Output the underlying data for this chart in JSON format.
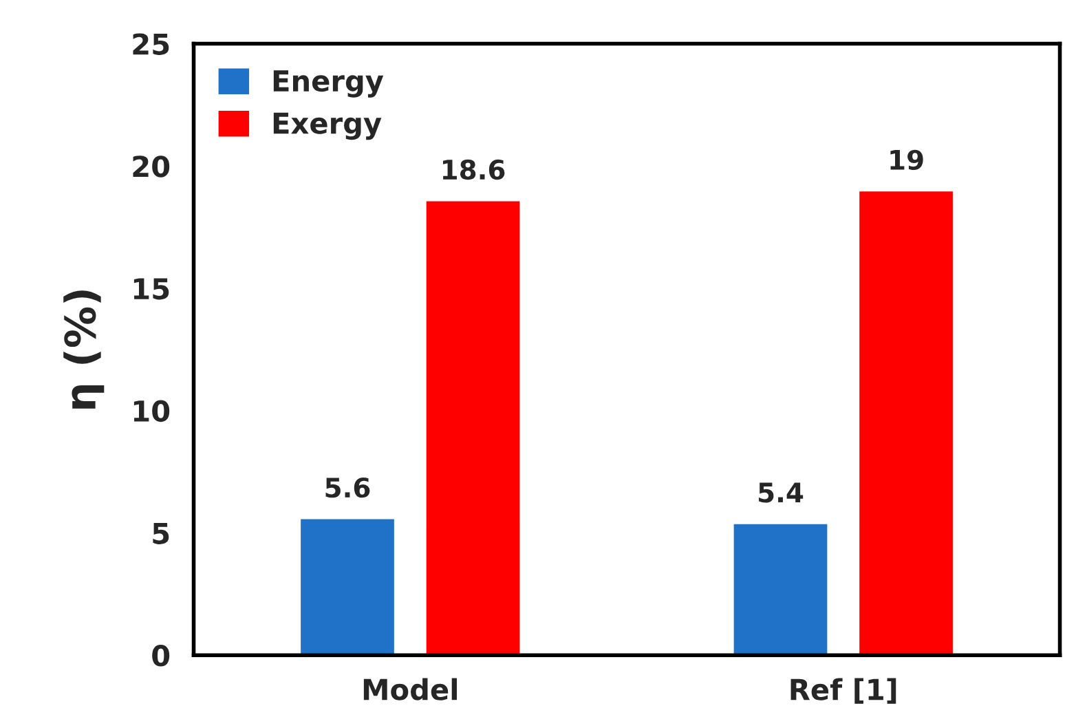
{
  "chart_data": {
    "type": "bar",
    "ylabel": "η (%)",
    "categories": [
      "Model",
      "Ref [1]"
    ],
    "series": [
      {
        "name": "Energy",
        "color": "#1f72c8",
        "values": [
          5.6,
          5.4
        ]
      },
      {
        "name": "Exergy",
        "color": "#ff0000",
        "values": [
          18.6,
          19
        ]
      }
    ],
    "ylim": [
      0,
      25
    ],
    "yticks": [
      0,
      5,
      10,
      15,
      20,
      25
    ],
    "grid": false,
    "legend": "top left",
    "data_labels": true
  }
}
